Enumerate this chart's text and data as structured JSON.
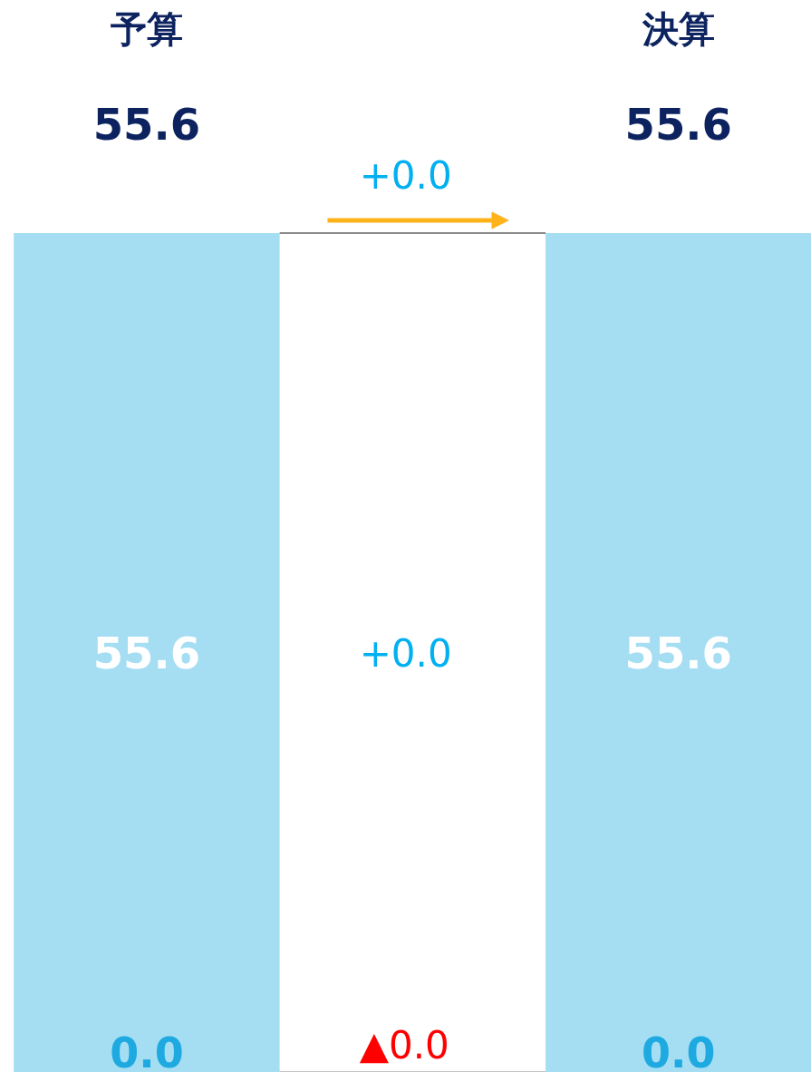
{
  "chart_data": {
    "type": "bar",
    "stacked": true,
    "categories": [
      "予算",
      null,
      "決算"
    ],
    "series": [
      {
        "color": "#1eaae1",
        "values": [
          0.0,
          null,
          0.0
        ],
        "value_labels": [
          "0.0",
          null,
          "0.0"
        ]
      },
      {
        "color": "#a5def3",
        "values": [
          55.6,
          null,
          55.6
        ],
        "value_labels": [
          "55.6",
          null,
          "55.6"
        ]
      }
    ],
    "totals": [
      "55.6",
      null,
      "55.6"
    ],
    "annotations": [
      "+0.0",
      "+0.0",
      "▲0.0"
    ],
    "grid": false,
    "tick_labels": "x"
  }
}
